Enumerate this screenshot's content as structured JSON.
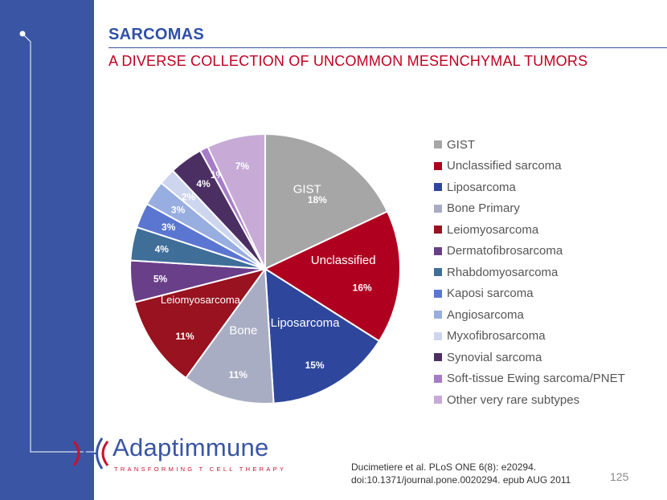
{
  "header": {
    "title": "SARCOMAS",
    "subtitle": "A DIVERSE COLLECTION OF UNCOMMON MESENCHYMAL TUMORS"
  },
  "colors": {
    "sidebar": "#3a55a4",
    "title": "#2f50a8",
    "subtitle": "#c00020"
  },
  "chart_data": {
    "type": "pie",
    "title": "",
    "start_angle_deg": 0,
    "direction": "clockwise",
    "legend_position": "right",
    "slices": [
      {
        "label": "GIST",
        "value": 18,
        "pct_label": "18%",
        "inner_label": "GIST",
        "color": "#a6a6a6"
      },
      {
        "label": "Unclassified sarcoma",
        "value": 16,
        "pct_label": "16%",
        "inner_label": "Unclassified",
        "color": "#b00020"
      },
      {
        "label": "Liposarcoma",
        "value": 15,
        "pct_label": "15%",
        "inner_label": "Liposarcoma",
        "color": "#2e479c"
      },
      {
        "label": "Bone Primary",
        "value": 11,
        "pct_label": "11%",
        "inner_label": "Bone",
        "color": "#a9adc4"
      },
      {
        "label": "Leiomyosarcoma",
        "value": 11,
        "pct_label": "11%",
        "inner_label": "Leiomyosarcoma",
        "color": "#98121f"
      },
      {
        "label": "Dermatofibrosarcoma",
        "value": 5,
        "pct_label": "5%",
        "inner_label": "",
        "color": "#6a3f8a"
      },
      {
        "label": "Rhabdomyosarcoma",
        "value": 4,
        "pct_label": "4%",
        "inner_label": "",
        "color": "#3f6e99"
      },
      {
        "label": "Kaposi sarcoma",
        "value": 3,
        "pct_label": "3%",
        "inner_label": "",
        "color": "#5b76d1"
      },
      {
        "label": "Angiosarcoma",
        "value": 3,
        "pct_label": "3%",
        "inner_label": "",
        "color": "#98aee0"
      },
      {
        "label": "Myxofibrosarcoma",
        "value": 2,
        "pct_label": "2%",
        "inner_label": "",
        "color": "#cdd6ee"
      },
      {
        "label": "Synovial sarcoma",
        "value": 4,
        "pct_label": "4%",
        "inner_label": "",
        "color": "#4b2f63"
      },
      {
        "label": "Soft-tissue Ewing sarcoma/PNET",
        "value": 1,
        "pct_label": "1%",
        "inner_label": "",
        "color": "#a77cc6"
      },
      {
        "label": "Other very rare subtypes",
        "value": 7,
        "pct_label": "7%",
        "inner_label": "",
        "color": "#c7abd6"
      }
    ]
  },
  "logo": {
    "name": "Adaptimmune",
    "tagline": "TRANSFORMING T CELL THERAPY"
  },
  "footer": {
    "citation_line1": "Ducimetiere et al. PLoS ONE 6(8): e20294.",
    "citation_line2": "doi:10.1371/journal.pone.0020294. epub AUG 2011",
    "page_number": "125"
  }
}
